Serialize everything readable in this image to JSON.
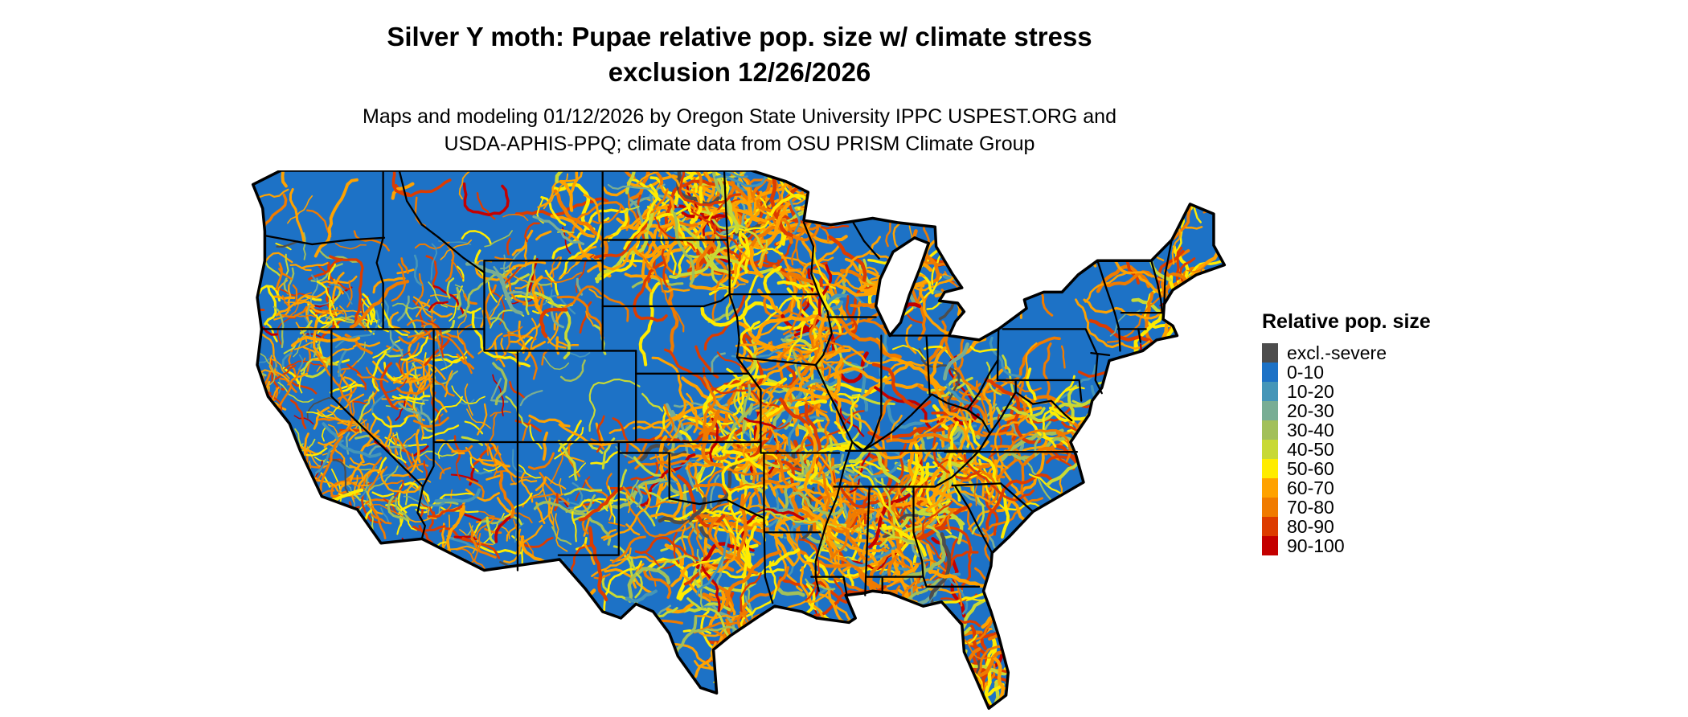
{
  "title": {
    "line1": "Silver Y moth: Pupae relative pop. size w/ climate stress",
    "line2": "exclusion 12/26/2026"
  },
  "subtitle": {
    "line1": "Maps and modeling 01/12/2026 by Oregon State University IPPC USPEST.ORG and",
    "line2": "USDA-APHIS-PPQ; climate data from OSU PRISM Climate Group"
  },
  "map": {
    "background": "#ffffff",
    "border_color": "#000000",
    "base_color": "#1d72c6"
  },
  "legend": {
    "title": "Relative pop. size",
    "items": [
      {
        "label": "excl.-severe",
        "color": "#4d4d4d"
      },
      {
        "label": "0-10",
        "color": "#1d72c6"
      },
      {
        "label": "10-20",
        "color": "#4596b8"
      },
      {
        "label": "20-30",
        "color": "#79ad94"
      },
      {
        "label": "30-40",
        "color": "#a2c05a"
      },
      {
        "label": "40-50",
        "color": "#c8d935"
      },
      {
        "label": "50-60",
        "color": "#ffec00"
      },
      {
        "label": "60-70",
        "color": "#ffa200"
      },
      {
        "label": "70-80",
        "color": "#f07b00"
      },
      {
        "label": "80-90",
        "color": "#dd3c00"
      },
      {
        "label": "90-100",
        "color": "#c40000"
      }
    ]
  }
}
